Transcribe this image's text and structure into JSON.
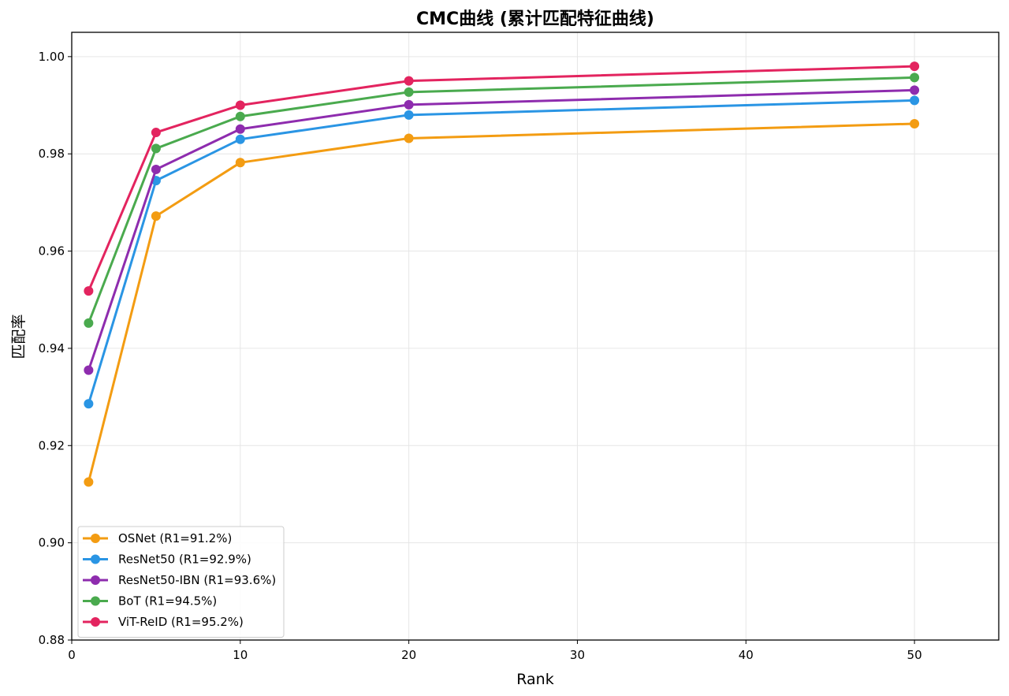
{
  "chart_data": {
    "type": "line",
    "title": "CMC曲线 (累计匹配特征曲线)",
    "xlabel": "Rank",
    "ylabel": "匹配率",
    "xlim": [
      0,
      55
    ],
    "ylim": [
      0.88,
      1.005
    ],
    "xticks": [
      0,
      10,
      20,
      30,
      40,
      50
    ],
    "yticks": [
      0.88,
      0.9,
      0.92,
      0.94,
      0.96,
      0.98,
      1.0
    ],
    "xtick_labels": [
      "0",
      "10",
      "20",
      "30",
      "40",
      "50"
    ],
    "ytick_labels": [
      "0.88",
      "0.90",
      "0.92",
      "0.94",
      "0.96",
      "0.98",
      "1.00"
    ],
    "grid": true,
    "legend_position": "bottom-left",
    "x": [
      1,
      5,
      10,
      20,
      50
    ],
    "series": [
      {
        "name": "OSNet (R1=91.2%)",
        "color": "#f39c12",
        "values": [
          0.9125,
          0.9672,
          0.9782,
          0.9832,
          0.9862
        ]
      },
      {
        "name": "ResNet50 (R1=92.9%)",
        "color": "#2a95e4",
        "values": [
          0.9286,
          0.9745,
          0.983,
          0.988,
          0.991
        ]
      },
      {
        "name": "ResNet50-IBN (R1=93.6%)",
        "color": "#8e2cae",
        "values": [
          0.9355,
          0.9768,
          0.9851,
          0.9901,
          0.9931
        ]
      },
      {
        "name": "BoT (R1=94.5%)",
        "color": "#4aaa4e",
        "values": [
          0.9452,
          0.9811,
          0.9877,
          0.9927,
          0.9957
        ]
      },
      {
        "name": "ViT-ReID (R1=95.2%)",
        "color": "#e3245f",
        "values": [
          0.9518,
          0.9844,
          0.99,
          0.995,
          0.998
        ]
      }
    ]
  }
}
